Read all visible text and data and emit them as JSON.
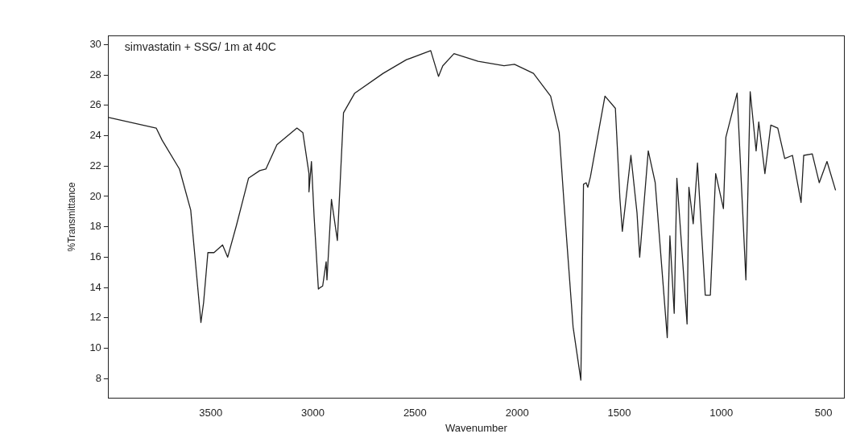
{
  "chart_data": {
    "type": "line",
    "xlabel": "Wavenumber",
    "ylabel": "%Transmittance",
    "annotations": [
      "simvastatin + SSG/ 1m at 40C"
    ],
    "xlim": [
      4000,
      400
    ],
    "xticks": [
      3500,
      3000,
      2500,
      2000,
      1500,
      1000,
      500
    ],
    "ylim": [
      6.7,
      30.6
    ],
    "yticks": [
      8,
      10,
      12,
      14,
      16,
      18,
      20,
      22,
      24,
      26,
      28,
      30
    ],
    "grid": false,
    "legend": false,
    "marker": "none",
    "line_style": "solid",
    "x": [
      4000,
      3767,
      3738,
      3653,
      3598,
      3569,
      3548,
      3535,
      3514,
      3484,
      3442,
      3417,
      3374,
      3315,
      3260,
      3230,
      3176,
      3078,
      3049,
      3019,
      3019,
      3007,
      2994,
      2973,
      2964,
      2952,
      2935,
      2931,
      2909,
      2880,
      2850,
      2795,
      2656,
      2542,
      2423,
      2385,
      2364,
      2309,
      2191,
      2064,
      2013,
      1920,
      1836,
      1794,
      1768,
      1726,
      1688,
      1675,
      1662,
      1654,
      1641,
      1570,
      1519,
      1497,
      1485,
      1443,
      1413,
      1400,
      1358,
      1324,
      1265,
      1252,
      1231,
      1218,
      1168,
      1159,
      1138,
      1117,
      1079,
      1054,
      1028,
      990,
      978,
      923,
      880,
      859,
      830,
      817,
      787,
      758,
      724,
      690,
      652,
      610,
      597,
      555,
      521,
      483,
      441
    ],
    "series": [
      {
        "color": "#222222",
        "values": [
          25.2,
          24.5,
          23.7,
          21.8,
          19.1,
          14.8,
          11.7,
          13.0,
          16.3,
          16.3,
          16.8,
          16.0,
          18.1,
          21.2,
          21.7,
          21.8,
          23.4,
          24.5,
          24.2,
          21.5,
          20.3,
          22.3,
          18.7,
          13.9,
          14.0,
          14.1,
          15.7,
          14.5,
          19.8,
          17.1,
          25.5,
          26.8,
          28.1,
          29.0,
          29.6,
          27.9,
          28.6,
          29.4,
          28.9,
          28.6,
          28.7,
          28.1,
          26.6,
          24.2,
          19.1,
          11.4,
          7.9,
          20.8,
          20.9,
          20.6,
          21.3,
          26.6,
          25.8,
          19.9,
          17.7,
          22.7,
          18.9,
          16.0,
          23.0,
          20.9,
          10.7,
          17.4,
          12.3,
          21.2,
          11.6,
          20.6,
          18.2,
          22.2,
          13.5,
          13.5,
          21.5,
          19.2,
          23.9,
          26.8,
          14.5,
          26.9,
          23.0,
          24.9,
          21.5,
          24.7,
          24.5,
          22.5,
          22.7,
          19.6,
          22.7,
          22.8,
          20.9,
          22.3,
          20.4
        ]
      }
    ]
  }
}
